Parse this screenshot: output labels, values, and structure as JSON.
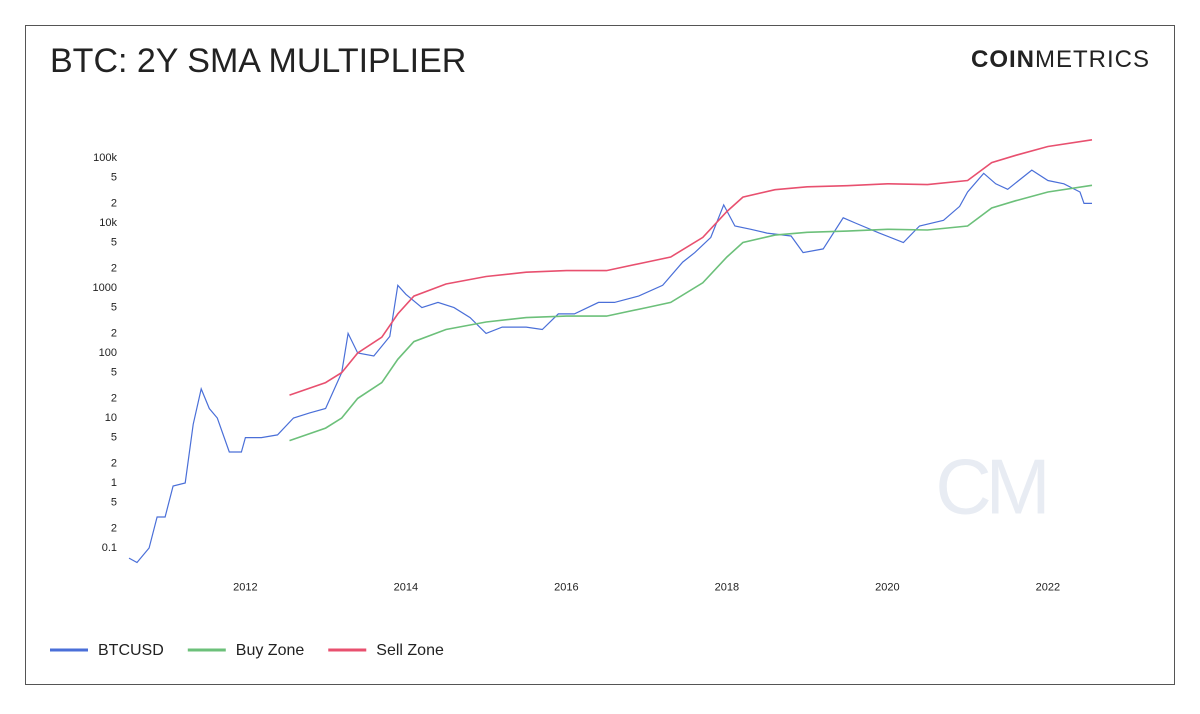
{
  "chart_data": {
    "type": "line",
    "title": "BTC: 2Y SMA MULTIPLIER",
    "brand_bold": "COIN",
    "brand_light": "METRICS",
    "watermark": "CM",
    "log_scale": true,
    "grid": false,
    "legend": "bottom-left",
    "xlim": [
      2010.5,
      2022.55
    ],
    "xticks": [
      2012,
      2014,
      2016,
      2018,
      2020,
      2022
    ],
    "ylim": [
      0.05,
      200000
    ],
    "yticks": [
      0.1,
      {
        "value": 0.2,
        "label": "2"
      },
      {
        "value": 0.5,
        "label": "5"
      },
      1,
      {
        "value": 2,
        "label": "2"
      },
      {
        "value": 5,
        "label": "5"
      },
      10,
      {
        "value": 20,
        "label": "2"
      },
      {
        "value": 50,
        "label": "5"
      },
      100,
      {
        "value": 200,
        "label": "2"
      },
      {
        "value": 500,
        "label": "5"
      },
      1000,
      {
        "value": 2000,
        "label": "2"
      },
      {
        "value": 5000,
        "label": "5"
      },
      {
        "value": 10000,
        "label": "10k"
      },
      {
        "value": 20000,
        "label": "2"
      },
      {
        "value": 50000,
        "label": "5"
      },
      {
        "value": 100000,
        "label": "100k"
      }
    ],
    "series": [
      {
        "name": "BTCUSD",
        "color": "#4a6fd8",
        "x": [
          2010.55,
          2010.65,
          2010.8,
          2010.9,
          2011.0,
          2011.1,
          2011.25,
          2011.35,
          2011.45,
          2011.55,
          2011.65,
          2011.8,
          2011.95,
          2012.0,
          2012.2,
          2012.4,
          2012.6,
          2012.8,
          2013.0,
          2013.2,
          2013.28,
          2013.4,
          2013.6,
          2013.8,
          2013.9,
          2014.0,
          2014.2,
          2014.4,
          2014.6,
          2014.8,
          2015.0,
          2015.2,
          2015.5,
          2015.7,
          2015.9,
          2016.1,
          2016.4,
          2016.6,
          2016.9,
          2017.2,
          2017.45,
          2017.6,
          2017.8,
          2017.96,
          2018.1,
          2018.3,
          2018.5,
          2018.8,
          2018.95,
          2019.2,
          2019.45,
          2019.6,
          2019.9,
          2020.2,
          2020.4,
          2020.7,
          2020.9,
          2021.0,
          2021.2,
          2021.35,
          2021.5,
          2021.8,
          2022.0,
          2022.2,
          2022.4,
          2022.45,
          2022.55
        ],
        "values": [
          0.07,
          0.06,
          0.1,
          0.3,
          0.3,
          0.9,
          1,
          8,
          28,
          14,
          10,
          3,
          3,
          5,
          5,
          5.5,
          10,
          12,
          14,
          50,
          200,
          100,
          90,
          180,
          1100,
          800,
          500,
          600,
          500,
          350,
          200,
          250,
          250,
          230,
          400,
          400,
          600,
          600,
          750,
          1100,
          2500,
          3500,
          6000,
          19000,
          9000,
          8000,
          7000,
          6300,
          3500,
          4000,
          12000,
          10000,
          7000,
          5000,
          9000,
          11000,
          18000,
          30000,
          58000,
          40000,
          33000,
          65000,
          45000,
          40000,
          30000,
          20000,
          20000
        ]
      },
      {
        "name": "Buy Zone",
        "color": "#6cc07a",
        "x": [
          2012.55,
          2013.0,
          2013.2,
          2013.4,
          2013.7,
          2013.9,
          2014.1,
          2014.5,
          2015.0,
          2015.5,
          2016.0,
          2016.5,
          2017.0,
          2017.3,
          2017.7,
          2018.0,
          2018.2,
          2018.6,
          2019.0,
          2019.5,
          2020.0,
          2020.5,
          2021.0,
          2021.3,
          2021.6,
          2022.0,
          2022.55
        ],
        "values": [
          4.5,
          7,
          10,
          20,
          35,
          80,
          150,
          230,
          300,
          350,
          370,
          370,
          500,
          600,
          1200,
          3000,
          5000,
          6500,
          7200,
          7500,
          8000,
          7800,
          9000,
          17000,
          22000,
          30000,
          38000
        ]
      },
      {
        "name": "Sell Zone",
        "color": "#e8506f",
        "x": [
          2012.55,
          2013.0,
          2013.2,
          2013.4,
          2013.7,
          2013.9,
          2014.1,
          2014.5,
          2015.0,
          2015.5,
          2016.0,
          2016.5,
          2017.0,
          2017.3,
          2017.7,
          2018.0,
          2018.2,
          2018.6,
          2019.0,
          2019.5,
          2020.0,
          2020.5,
          2021.0,
          2021.3,
          2021.6,
          2022.0,
          2022.55
        ],
        "values": [
          22.5,
          35,
          50,
          100,
          175,
          400,
          750,
          1150,
          1500,
          1750,
          1850,
          1850,
          2500,
          3000,
          6000,
          15000,
          25000,
          32500,
          36000,
          37500,
          40000,
          39000,
          45000,
          85000,
          110000,
          150000,
          190000
        ]
      }
    ]
  }
}
